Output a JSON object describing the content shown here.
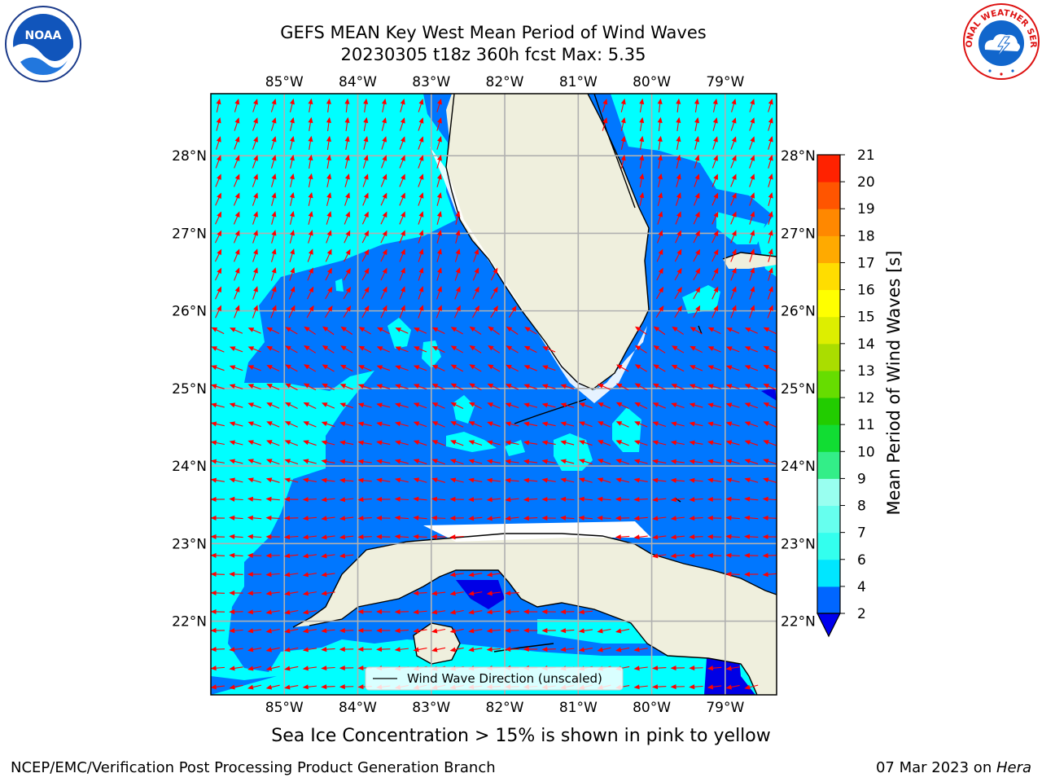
{
  "title_line1": "GEFS MEAN Key West Mean Period of Wind Waves",
  "title_line2": "20230305 t18z 360h fcst   Max: 5.35",
  "logos": {
    "left": "NOAA",
    "right": "NATIONAL WEATHER SERVICE"
  },
  "map": {
    "lon_labels": [
      "85°W",
      "84°W",
      "83°W",
      "82°W",
      "81°W",
      "80°W",
      "79°W"
    ],
    "lat_labels": [
      "28°N",
      "27°N",
      "26°N",
      "25°N",
      "24°N",
      "23°N",
      "22°N"
    ],
    "lon_range": [
      -86.0,
      -78.3
    ],
    "lat_range": [
      21.05,
      28.8
    ],
    "legend_label": "Wind Wave Direction (unscaled)"
  },
  "colorbar": {
    "label": "Mean Period of Wind Waves [s]",
    "ticks": [
      "2",
      "4",
      "6",
      "7",
      "8",
      "9",
      "10",
      "11",
      "12",
      "13",
      "14",
      "15",
      "16",
      "17",
      "18",
      "19",
      "20",
      "21"
    ],
    "colors": [
      "#0066ff",
      "#00e6ff",
      "#33ffee",
      "#66ffee",
      "#99fff0",
      "#33ee88",
      "#11dd33",
      "#22cc00",
      "#66dd00",
      "#aadd00",
      "#ddee00",
      "#ffff00",
      "#ffdd00",
      "#ffaa00",
      "#ff8800",
      "#ff5500",
      "#ff2200"
    ],
    "under_color": "#0000ee"
  },
  "colors": {
    "land": "#efefdd",
    "light_sea": "#00ffff",
    "mid_sea": "#0077ff",
    "deep": "#0000e6",
    "arrow": "#ff0000",
    "grid": "#b0b0b0"
  },
  "footer": {
    "ice_note": "Sea Ice Concentration > 15% is shown in pink to yellow",
    "branch": "NCEP/EMC/Verification Post Processing Product Generation Branch",
    "date": "07 Mar 2023 on ",
    "machine": "Hera"
  }
}
